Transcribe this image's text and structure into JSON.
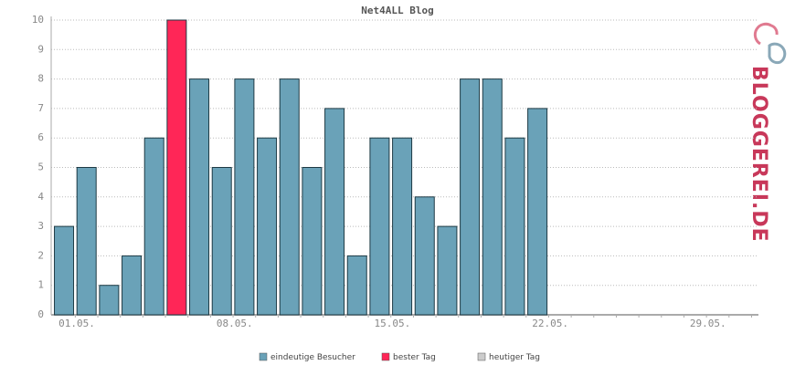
{
  "chart_data": {
    "type": "bar",
    "title": "Net4ALL Blog",
    "categories": [
      "01.05.",
      null,
      null,
      null,
      null,
      null,
      null,
      "08.05.",
      null,
      null,
      null,
      null,
      null,
      null,
      "15.05.",
      null,
      null,
      null,
      null,
      null,
      null,
      "22.05.",
      null,
      null,
      null,
      null,
      null,
      null,
      "29.05.",
      null,
      null
    ],
    "series": [
      {
        "name": "eindeutige Besucher",
        "color": "#6aa2b8",
        "values": [
          3,
          5,
          1,
          2,
          6,
          null,
          8,
          5,
          8,
          6,
          8,
          5,
          7,
          2,
          6,
          6,
          4,
          3,
          8,
          8,
          6,
          7,
          null,
          null,
          null,
          null,
          null,
          null,
          null,
          null,
          null
        ]
      },
      {
        "name": "bester Tag",
        "color": "#ff2657",
        "values": [
          null,
          null,
          null,
          null,
          null,
          10,
          null,
          null,
          null,
          null,
          null,
          null,
          null,
          null,
          null,
          null,
          null,
          null,
          null,
          null,
          null,
          null,
          null,
          null,
          null,
          null,
          null,
          null,
          null,
          null,
          null
        ]
      },
      {
        "name": "heutiger Tag",
        "color": "#cccccc",
        "values": [
          null,
          null,
          null,
          null,
          null,
          null,
          null,
          null,
          null,
          null,
          null,
          null,
          null,
          null,
          null,
          null,
          null,
          null,
          null,
          null,
          null,
          null,
          null,
          null,
          null,
          null,
          null,
          null,
          null,
          null,
          null
        ]
      }
    ],
    "ylim": [
      0,
      10
    ],
    "yticks": [
      0,
      1,
      2,
      3,
      4,
      5,
      6,
      7,
      8,
      9,
      10
    ],
    "grid": true
  },
  "logo": "BLOGGEREI.DE"
}
